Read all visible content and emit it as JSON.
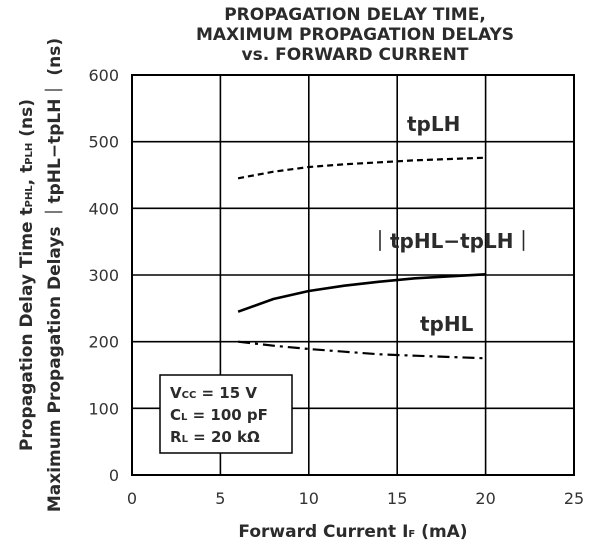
{
  "chart_data": {
    "type": "line",
    "title_lines": [
      "PROPAGATION DELAY TIME,",
      "MAXIMUM PROPAGATION DELAYS",
      "vs. FORWARD CURRENT"
    ],
    "xlabel": "Forward Current I",
    "xlabel_sub": "F",
    "xlabel_unit": " (mA)",
    "ylabel_line1": "Propagation Delay Time t",
    "ylabel_line1_sub1": "PHL",
    "ylabel_line1_mid": ", t",
    "ylabel_line1_sub2": "PLH",
    "ylabel_line1_unit": " (ns)",
    "ylabel_line2": "Maximum Propagation Delays ｜tpHL−tpLH｜ (ns)",
    "xlim": [
      0,
      25
    ],
    "ylim": [
      0,
      600
    ],
    "x_ticks": [
      0,
      5,
      10,
      15,
      20,
      25
    ],
    "y_ticks": [
      0,
      100,
      200,
      300,
      400,
      500,
      600
    ],
    "grid": true,
    "series": [
      {
        "name": "tpLH",
        "style": "dashed",
        "x": [
          6,
          8,
          10,
          12,
          14,
          16,
          18,
          20
        ],
        "y": [
          445,
          455,
          462,
          466,
          469,
          472,
          474,
          476
        ]
      },
      {
        "name": "｜tpHL−tpLH｜",
        "style": "solid",
        "x": [
          6,
          8,
          10,
          12,
          14,
          16,
          18,
          20
        ],
        "y": [
          245,
          264,
          276,
          284,
          290,
          295,
          298,
          301
        ]
      },
      {
        "name": "tpHL",
        "style": "dashdot",
        "x": [
          6,
          8,
          10,
          12,
          14,
          16,
          18,
          20
        ],
        "y": [
          200,
          194,
          189,
          185,
          181,
          179,
          177,
          175
        ]
      }
    ],
    "conditions": [
      {
        "main": "V",
        "sub": "CC",
        "rest": " = 15 V"
      },
      {
        "main": "C",
        "sub": "L",
        "rest": " = 100 pF"
      },
      {
        "main": "R",
        "sub": "L",
        "rest": " = 20 kΩ"
      }
    ],
    "colors": {
      "line": "#000000",
      "grid": "#000000",
      "text": "#2b2b2b"
    }
  }
}
